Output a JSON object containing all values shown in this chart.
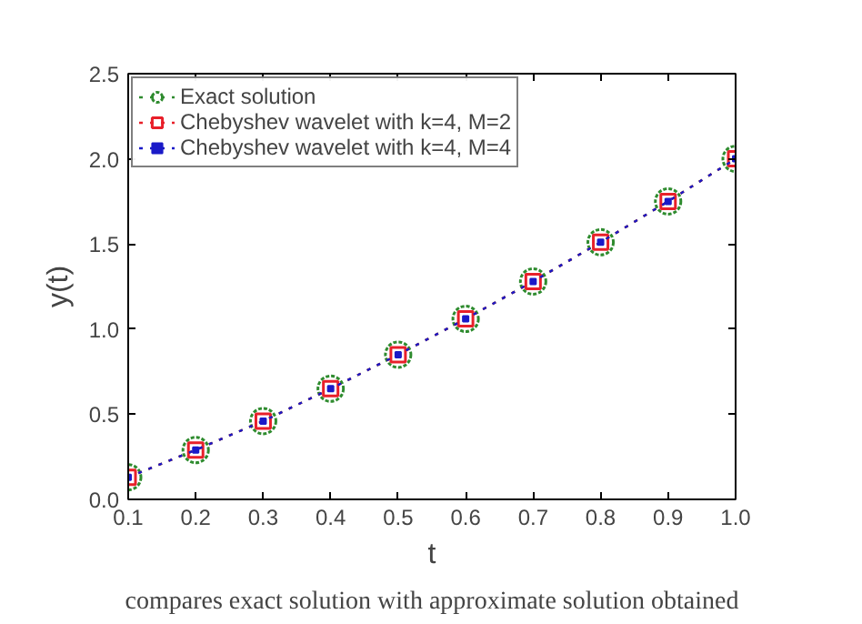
{
  "chart_data": {
    "type": "line",
    "xlabel": "t",
    "ylabel": "y(t)",
    "x": [
      0.1,
      0.2,
      0.3,
      0.4,
      0.5,
      0.6,
      0.7,
      0.8,
      0.9,
      1.0
    ],
    "series": [
      {
        "name": "Exact solution",
        "color": "#2e8b2e",
        "marker": "circle",
        "values": [
          0.13,
          0.29,
          0.46,
          0.65,
          0.85,
          1.06,
          1.28,
          1.51,
          1.75,
          2.0
        ]
      },
      {
        "name": "Chebyshev wavelet with k=4, M=2",
        "color": "#e8202a",
        "marker": "square",
        "values": [
          0.13,
          0.29,
          0.46,
          0.65,
          0.85,
          1.06,
          1.28,
          1.51,
          1.75,
          2.0
        ]
      },
      {
        "name": "Chebyshev wavelet with k=4, M=4",
        "color": "#1a1ac8",
        "marker": "square",
        "values": [
          0.13,
          0.29,
          0.46,
          0.65,
          0.85,
          1.06,
          1.28,
          1.51,
          1.75,
          2.0
        ]
      }
    ],
    "xlim": [
      0.1,
      1.0
    ],
    "ylim": [
      0.0,
      2.5
    ],
    "xticks": [
      0.1,
      0.2,
      0.3,
      0.4,
      0.5,
      0.6,
      0.7,
      0.8,
      0.9,
      {
        "value": 1,
        "label": "1.0"
      }
    ],
    "yticks": [
      {
        "value": 0,
        "label": "0.0"
      },
      0.5,
      {
        "value": 1,
        "label": "1.0"
      },
      1.5,
      {
        "value": 2,
        "label": "2.0"
      },
      2.5
    ],
    "grid": false,
    "legend": "top left",
    "line_style": "dotted",
    "annotations": [
      "compares exact solution with approximate solution obtained"
    ]
  }
}
